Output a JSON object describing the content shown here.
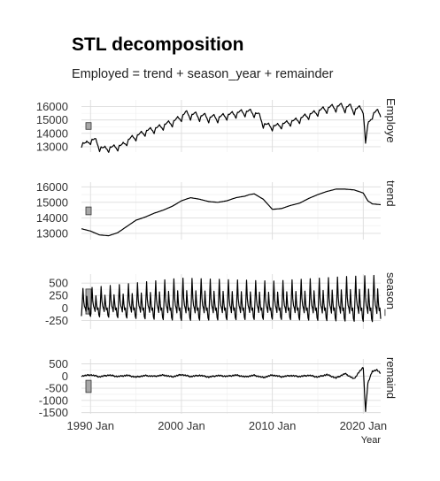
{
  "chart_data": {
    "type": "line",
    "title": "STL decomposition",
    "subtitle": "Employed = trend + season_year + remainder",
    "xlabel": "Year",
    "x_ticks": [
      "1990 Jan",
      "2000 Jan",
      "2010 Jan",
      "2020 Jan"
    ],
    "x_range": [
      "1989 Jan",
      "2021 Dec"
    ],
    "grid": true,
    "panels": [
      {
        "name": "Employed",
        "strip_label": "Employe",
        "y_ticks": [
          13000,
          14000,
          15000,
          16000
        ],
        "ylim": [
          12600,
          16500
        ],
        "values": [
          [
            "1989-01",
            13050
          ],
          [
            "1989-07",
            13350
          ],
          [
            "1990-01",
            13280
          ],
          [
            "1990-07",
            13650
          ],
          [
            "1991-01",
            12750
          ],
          [
            "1991-07",
            13000
          ],
          [
            "1992-01",
            12700
          ],
          [
            "1992-07",
            13100
          ],
          [
            "1993-01",
            12800
          ],
          [
            "1993-07",
            13250
          ],
          [
            "1994-01",
            13200
          ],
          [
            "1994-07",
            13800
          ],
          [
            "1995-01",
            13550
          ],
          [
            "1995-07",
            14100
          ],
          [
            "1996-01",
            13900
          ],
          [
            "1996-07",
            14400
          ],
          [
            "1997-01",
            14100
          ],
          [
            "1997-07",
            14600
          ],
          [
            "1998-01",
            14350
          ],
          [
            "1998-07",
            14900
          ],
          [
            "1999-01",
            14600
          ],
          [
            "1999-07",
            15200
          ],
          [
            "2000-01",
            15000
          ],
          [
            "2000-07",
            15700
          ],
          [
            "2001-01",
            15100
          ],
          [
            "2001-07",
            15600
          ],
          [
            "2002-01",
            15000
          ],
          [
            "2002-07",
            15500
          ],
          [
            "2003-01",
            14900
          ],
          [
            "2003-07",
            15400
          ],
          [
            "2004-01",
            14900
          ],
          [
            "2004-07",
            15450
          ],
          [
            "2005-01",
            15100
          ],
          [
            "2005-07",
            15600
          ],
          [
            "2006-01",
            15250
          ],
          [
            "2006-07",
            15750
          ],
          [
            "2007-01",
            15350
          ],
          [
            "2007-07",
            15800
          ],
          [
            "2008-01",
            15300
          ],
          [
            "2008-07",
            15550
          ],
          [
            "2009-01",
            14500
          ],
          [
            "2009-07",
            14750
          ],
          [
            "2010-01",
            14300
          ],
          [
            "2010-07",
            14700
          ],
          [
            "2011-01",
            14450
          ],
          [
            "2011-07",
            14900
          ],
          [
            "2012-01",
            14650
          ],
          [
            "2012-07",
            15100
          ],
          [
            "2013-01",
            14850
          ],
          [
            "2013-07",
            15400
          ],
          [
            "2014-01",
            15150
          ],
          [
            "2014-07",
            15650
          ],
          [
            "2015-01",
            15400
          ],
          [
            "2015-07",
            15950
          ],
          [
            "2016-01",
            15600
          ],
          [
            "2016-07",
            16150
          ],
          [
            "2017-01",
            15700
          ],
          [
            "2017-07",
            16250
          ],
          [
            "2018-01",
            15650
          ],
          [
            "2018-07",
            16200
          ],
          [
            "2019-01",
            15500
          ],
          [
            "2019-07",
            16050
          ],
          [
            "2020-01",
            15600
          ],
          [
            "2020-04",
            13200
          ],
          [
            "2020-07",
            14700
          ],
          [
            "2021-01",
            15200
          ],
          [
            "2021-07",
            15800
          ],
          [
            "2021-12",
            15300
          ]
        ]
      },
      {
        "name": "trend",
        "strip_label": "trend",
        "y_ticks": [
          13000,
          14000,
          15000,
          16000
        ],
        "ylim": [
          12600,
          16300
        ],
        "values": [
          [
            "1989-01",
            13300
          ],
          [
            "1990-01",
            13150
          ],
          [
            "1991-01",
            12900
          ],
          [
            "1992-01",
            12850
          ],
          [
            "1993-01",
            13050
          ],
          [
            "1994-01",
            13450
          ],
          [
            "1995-01",
            13850
          ],
          [
            "1996-01",
            14050
          ],
          [
            "1997-01",
            14300
          ],
          [
            "1998-01",
            14500
          ],
          [
            "1999-01",
            14750
          ],
          [
            "2000-01",
            15100
          ],
          [
            "2001-01",
            15300
          ],
          [
            "2002-01",
            15200
          ],
          [
            "2003-01",
            15050
          ],
          [
            "2004-01",
            15000
          ],
          [
            "2005-01",
            15100
          ],
          [
            "2006-01",
            15300
          ],
          [
            "2007-01",
            15400
          ],
          [
            "2007-07",
            15500
          ],
          [
            "2008-01",
            15550
          ],
          [
            "2009-01",
            15200
          ],
          [
            "2010-01",
            14550
          ],
          [
            "2011-01",
            14600
          ],
          [
            "2012-01",
            14800
          ],
          [
            "2013-01",
            14950
          ],
          [
            "2014-01",
            15250
          ],
          [
            "2015-01",
            15500
          ],
          [
            "2016-01",
            15700
          ],
          [
            "2017-01",
            15850
          ],
          [
            "2018-01",
            15850
          ],
          [
            "2019-01",
            15800
          ],
          [
            "2020-01",
            15600
          ],
          [
            "2020-07",
            15100
          ],
          [
            "2021-01",
            14900
          ],
          [
            "2021-12",
            14850
          ]
        ]
      },
      {
        "name": "season_year",
        "strip_label": "season_",
        "y_ticks": [
          -250,
          0,
          250,
          500
        ],
        "ylim": [
          -420,
          680
        ],
        "seasonal_pattern": [
          -250,
          150,
          600,
          200,
          50,
          0,
          -100,
          350,
          100,
          -50,
          0,
          -200
        ],
        "amplitude_scale": [
          [
            "1989-01",
            0.65
          ],
          [
            "2000-01",
            1.0
          ],
          [
            "2010-01",
            0.9
          ],
          [
            "2018-01",
            1.05
          ],
          [
            "2021-12",
            1.1
          ]
        ]
      },
      {
        "name": "remainder",
        "strip_label": "remaind",
        "y_ticks": [
          -1500,
          -1000,
          -500,
          0,
          500
        ],
        "ylim": [
          -1550,
          700
        ],
        "values": [
          [
            "1989-01",
            0
          ],
          [
            "1990-01",
            50
          ],
          [
            "1991-01",
            -30
          ],
          [
            "1992-01",
            40
          ],
          [
            "1993-01",
            -20
          ],
          [
            "1994-01",
            30
          ],
          [
            "1995-01",
            -40
          ],
          [
            "1996-01",
            20
          ],
          [
            "1997-01",
            -10
          ],
          [
            "1998-01",
            40
          ],
          [
            "1999-01",
            -30
          ],
          [
            "2000-01",
            60
          ],
          [
            "2001-01",
            -20
          ],
          [
            "2002-01",
            30
          ],
          [
            "2003-01",
            -40
          ],
          [
            "2004-01",
            20
          ],
          [
            "2005-01",
            -10
          ],
          [
            "2006-01",
            40
          ],
          [
            "2007-01",
            -30
          ],
          [
            "2008-01",
            30
          ],
          [
            "2009-01",
            -60
          ],
          [
            "2010-01",
            40
          ],
          [
            "2011-01",
            -30
          ],
          [
            "2012-01",
            20
          ],
          [
            "2013-01",
            -20
          ],
          [
            "2014-01",
            30
          ],
          [
            "2015-01",
            -40
          ],
          [
            "2016-01",
            60
          ],
          [
            "2017-01",
            -80
          ],
          [
            "2018-01",
            100
          ],
          [
            "2019-01",
            -120
          ],
          [
            "2019-07",
            150
          ],
          [
            "2020-01",
            350
          ],
          [
            "2020-04",
            -1450
          ],
          [
            "2020-07",
            -300
          ],
          [
            "2021-01",
            200
          ],
          [
            "2021-07",
            250
          ],
          [
            "2021-12",
            100
          ]
        ]
      }
    ]
  }
}
